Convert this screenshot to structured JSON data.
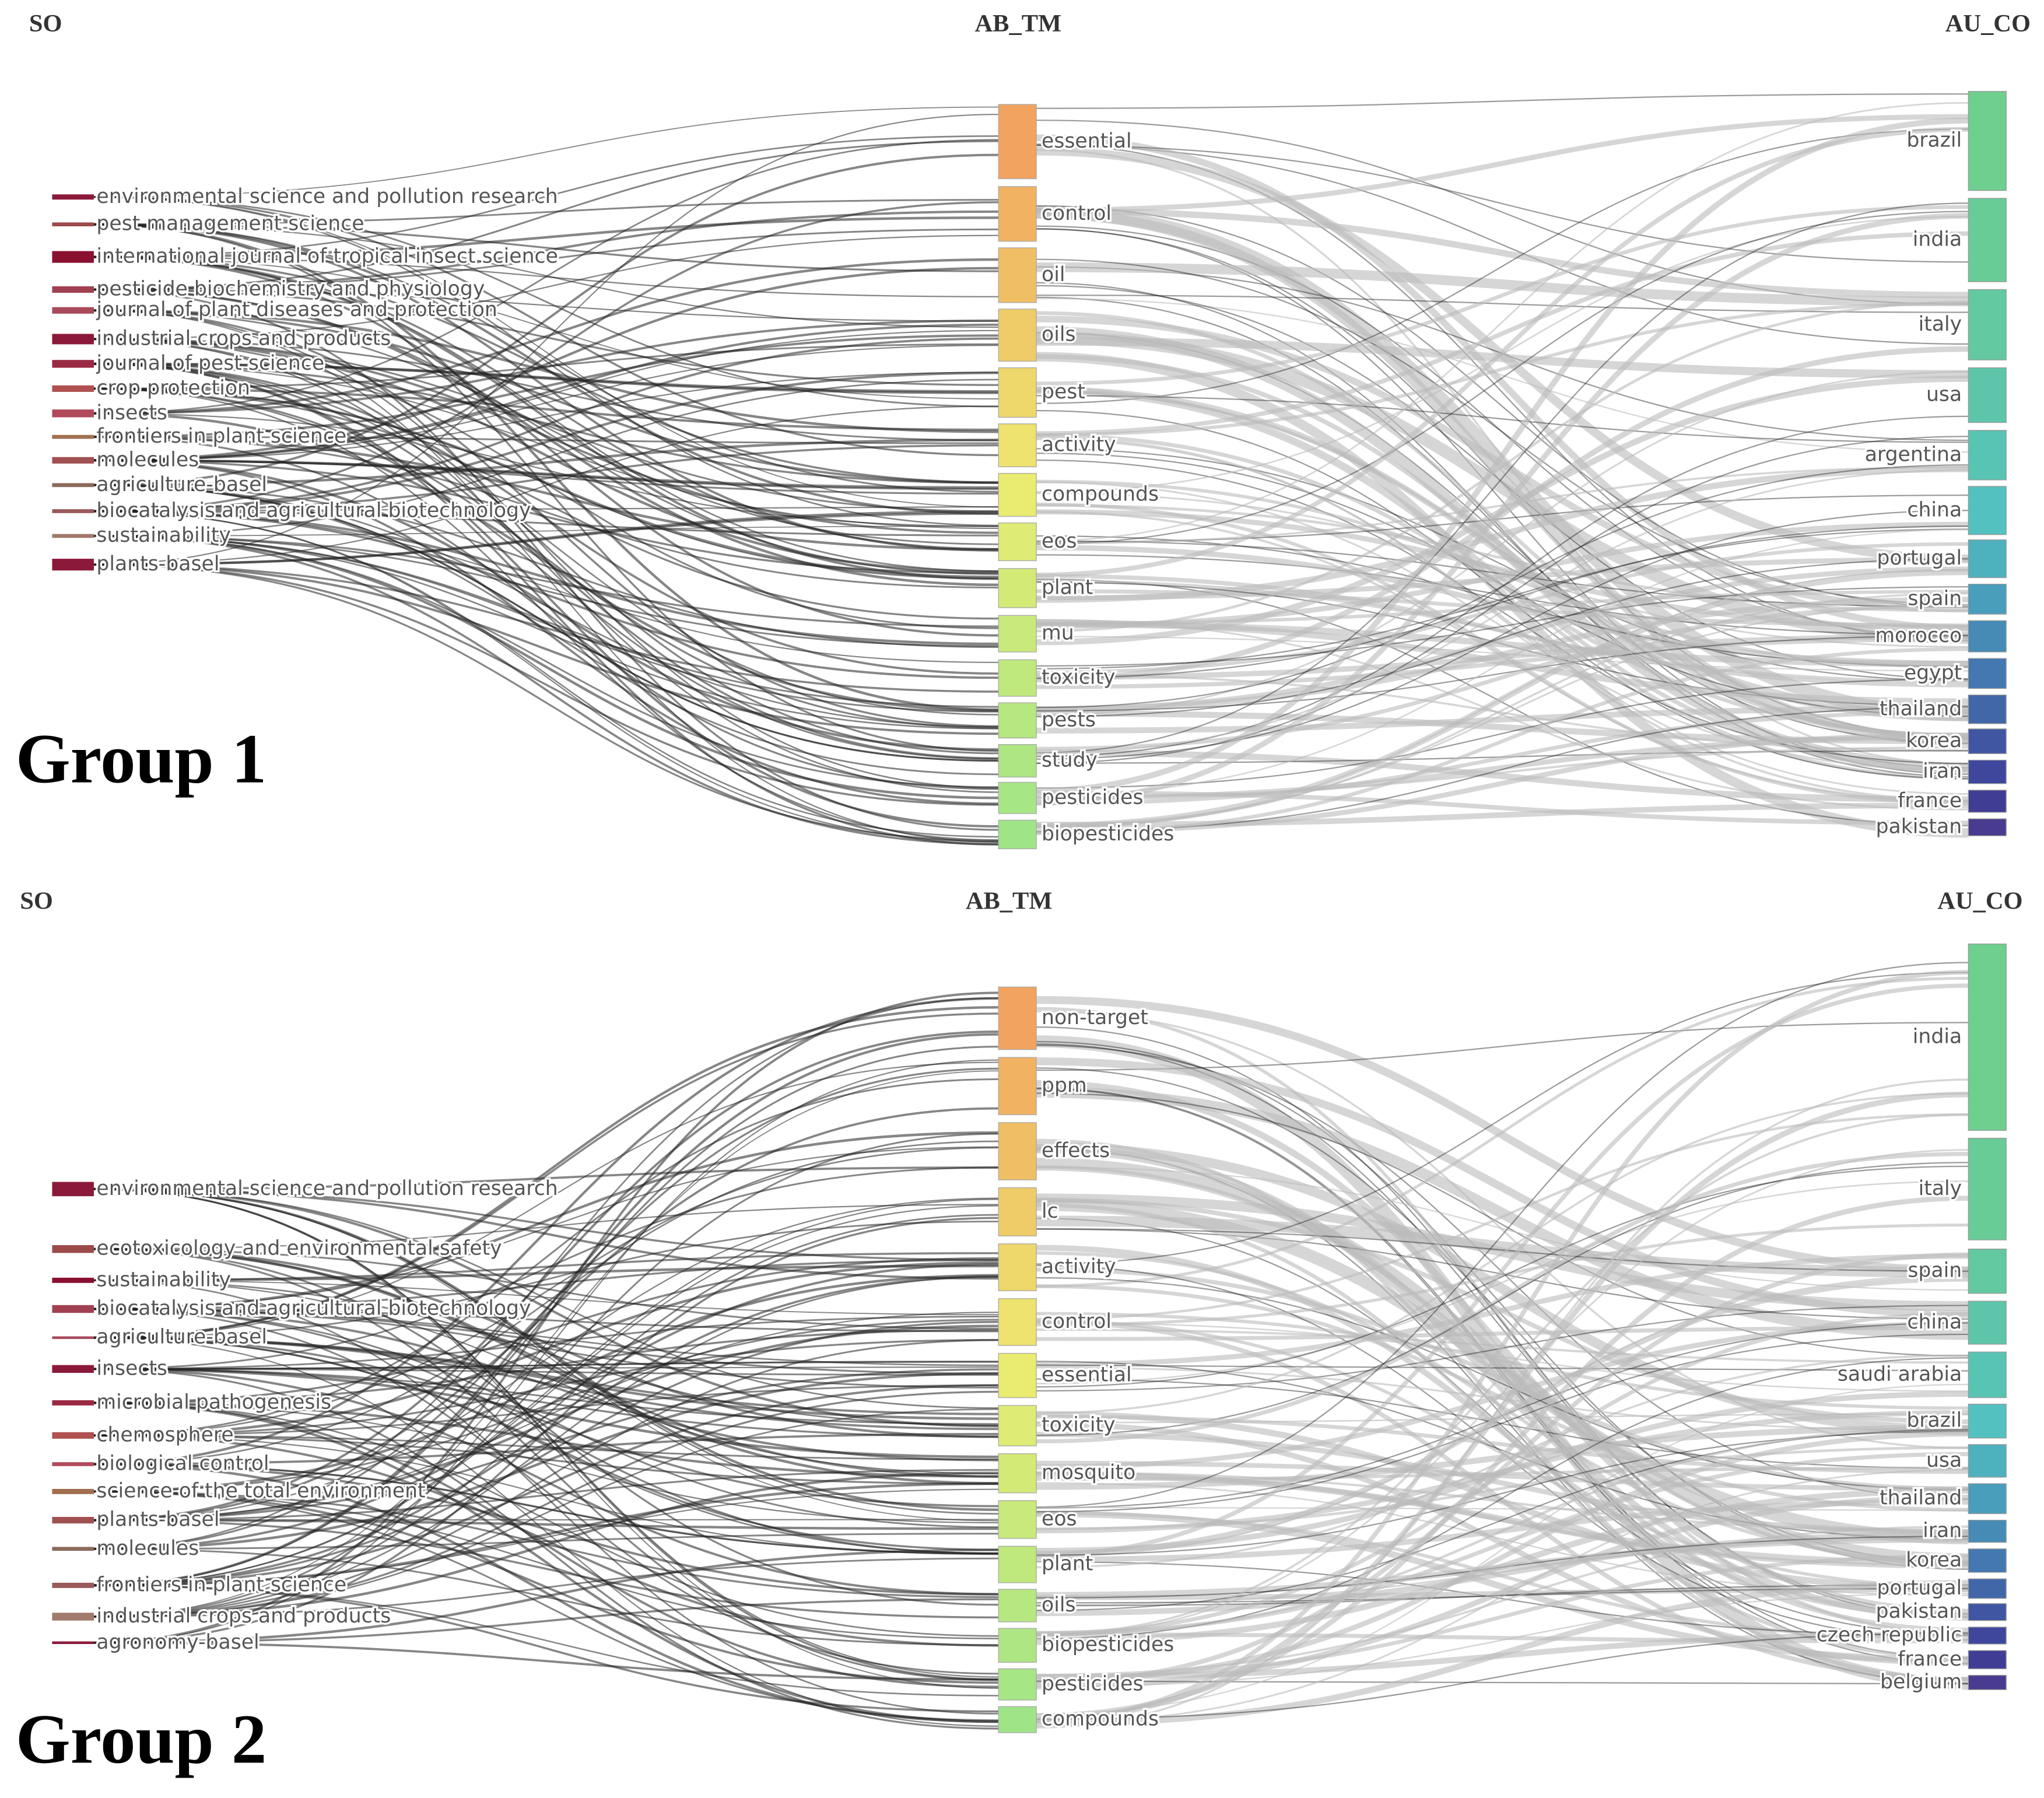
{
  "groups": [
    {
      "title": "Group 1",
      "columns": [
        "SO",
        "AB_TM",
        "AU_CO"
      ],
      "sources": [
        "environmental science and pollution research",
        "pest management science",
        "international journal of tropical insect science",
        "pesticide biochemistry and physiology",
        "journal of plant diseases and protection",
        "industrial crops and products",
        "journal of pest science",
        "crop protection",
        "insects",
        "frontiers in plant science",
        "molecules",
        "agriculture-basel",
        "biocatalysis and agricultural biotechnology",
        "sustainability",
        "plants-basel"
      ],
      "terms": [
        "essential",
        "control",
        "oil",
        "oils",
        "pest",
        "activity",
        "compounds",
        "eos",
        "plant",
        "mu",
        "toxicity",
        "pests",
        "study",
        "pesticides",
        "biopesticides"
      ],
      "countries": [
        "brazil",
        "india",
        "italy",
        "usa",
        "argentina",
        "china",
        "portugal",
        "spain",
        "morocco",
        "egypt",
        "thailand",
        "korea",
        "iran",
        "france",
        "pakistan"
      ]
    },
    {
      "title": "Group 2",
      "columns": [
        "SO",
        "AB_TM",
        "AU_CO"
      ],
      "sources": [
        "environmental science and pollution research",
        "ecotoxicology and environmental safety",
        "sustainability",
        "biocatalysis and agricultural biotechnology",
        "agriculture-basel",
        "insects",
        "microbial pathogenesis",
        "chemosphere",
        "biological control",
        "science of the total environment",
        "plants-basel",
        "molecules",
        "frontiers in plant science",
        "industrial crops and products",
        "agronomy-basel"
      ],
      "terms": [
        "non-target",
        "ppm",
        "effects",
        "lc",
        "activity",
        "control",
        "essential",
        "toxicity",
        "mosquito",
        "eos",
        "plant",
        "oils",
        "biopesticides",
        "pesticides",
        "compounds"
      ],
      "countries": [
        "india",
        "italy",
        "spain",
        "china",
        "saudi arabia",
        "brazil",
        "usa",
        "thailand",
        "iran",
        "korea",
        "portugal",
        "pakistan",
        "czech republic",
        "france",
        "belgium"
      ]
    }
  ]
}
